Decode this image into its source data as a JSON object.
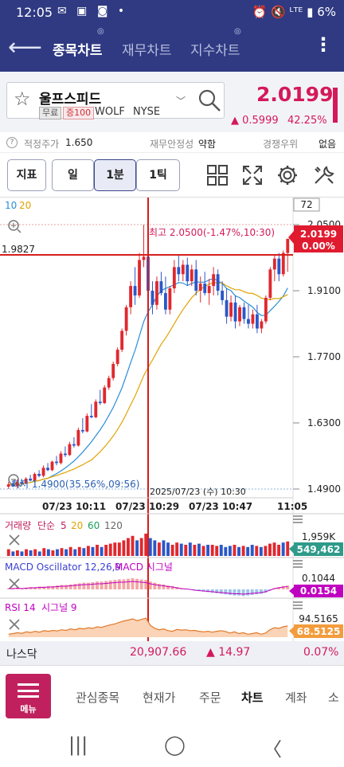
{
  "status_bar": {
    "time": "12:05",
    "left_icons": "✉ ▣ ◙ •",
    "right": "⏰ 🔇 ᴸᵀᴱ ▮ 6%"
  },
  "app_bar": {
    "tabs": [
      {
        "label": "종목차트",
        "badge": "◎",
        "active": true
      },
      {
        "label": "재무차트",
        "badge": "",
        "active": false
      },
      {
        "label": "지수차트",
        "badge": "◎",
        "active": false
      }
    ],
    "back_icon": "arrow-left-icon",
    "more_icon": "kebab-menu-icon"
  },
  "stock": {
    "name": "울프스피드",
    "tag_free": "무료",
    "tag_margin": "증100",
    "ticker": "WOLF",
    "exchange": "NYSE",
    "price": "2.0199",
    "change": "▲ 0.5999",
    "change_pct": "42.25%",
    "up_color": "#d4195a"
  },
  "info": {
    "fair_label": "적정주가",
    "fair_value": "1.650",
    "stability_label": "재무안정성",
    "stability_value": "약함",
    "competition_label": "경쟁우위",
    "competition_value": "없음",
    "help_icon": "?"
  },
  "toolbar": {
    "indicator_label": "지표",
    "period_day": "일",
    "period_min": "1분",
    "period_tick": "1틱"
  },
  "chart_data": {
    "type": "candlestick",
    "count_box": "72",
    "ma_legend": [
      "10",
      "20"
    ],
    "ma_colors": [
      "#2b8fd8",
      "#e0a300"
    ],
    "price_axis": [
      "2.0500",
      "1.9100",
      "1.7700",
      "1.6300",
      "1.4900"
    ],
    "ylim": [
      1.49,
      2.05
    ],
    "crosshair_value": "1.9827",
    "crosshair_time": "2025/07/23 (수) 10:30",
    "high_annotation": "최고 2.0500(-1.47%,10:30)",
    "low_annotation": "최저 1.4900(35.56%,09:56)",
    "current_price_label": "2.0199",
    "current_change_label": "0.00%",
    "time_axis": [
      "07/23 10:11",
      "07/23 10:29",
      "07/23 10:47",
      "11:05"
    ],
    "candles": [
      {
        "o": 1.495,
        "h": 1.505,
        "l": 1.49,
        "c": 1.5
      },
      {
        "o": 1.5,
        "h": 1.508,
        "l": 1.494,
        "c": 1.496
      },
      {
        "o": 1.496,
        "h": 1.51,
        "l": 1.492,
        "c": 1.505
      },
      {
        "o": 1.505,
        "h": 1.512,
        "l": 1.498,
        "c": 1.502
      },
      {
        "o": 1.502,
        "h": 1.515,
        "l": 1.5,
        "c": 1.512
      },
      {
        "o": 1.512,
        "h": 1.52,
        "l": 1.506,
        "c": 1.508
      },
      {
        "o": 1.508,
        "h": 1.525,
        "l": 1.505,
        "c": 1.522
      },
      {
        "o": 1.522,
        "h": 1.53,
        "l": 1.515,
        "c": 1.518
      },
      {
        "o": 1.518,
        "h": 1.54,
        "l": 1.515,
        "c": 1.535
      },
      {
        "o": 1.535,
        "h": 1.545,
        "l": 1.528,
        "c": 1.53
      },
      {
        "o": 1.53,
        "h": 1.55,
        "l": 1.528,
        "c": 1.548
      },
      {
        "o": 1.548,
        "h": 1.56,
        "l": 1.54,
        "c": 1.545
      },
      {
        "o": 1.545,
        "h": 1.57,
        "l": 1.542,
        "c": 1.565
      },
      {
        "o": 1.565,
        "h": 1.58,
        "l": 1.558,
        "c": 1.562
      },
      {
        "o": 1.562,
        "h": 1.59,
        "l": 1.56,
        "c": 1.585
      },
      {
        "o": 1.585,
        "h": 1.6,
        "l": 1.578,
        "c": 1.582
      },
      {
        "o": 1.582,
        "h": 1.62,
        "l": 1.58,
        "c": 1.615
      },
      {
        "o": 1.615,
        "h": 1.64,
        "l": 1.608,
        "c": 1.612
      },
      {
        "o": 1.612,
        "h": 1.65,
        "l": 1.61,
        "c": 1.645
      },
      {
        "o": 1.645,
        "h": 1.67,
        "l": 1.64,
        "c": 1.642
      },
      {
        "o": 1.642,
        "h": 1.68,
        "l": 1.64,
        "c": 1.675
      },
      {
        "o": 1.675,
        "h": 1.7,
        "l": 1.668,
        "c": 1.672
      },
      {
        "o": 1.672,
        "h": 1.71,
        "l": 1.67,
        "c": 1.705
      },
      {
        "o": 1.705,
        "h": 1.73,
        "l": 1.7,
        "c": 1.725
      },
      {
        "o": 1.725,
        "h": 1.76,
        "l": 1.72,
        "c": 1.755
      },
      {
        "o": 1.755,
        "h": 1.79,
        "l": 1.75,
        "c": 1.785
      },
      {
        "o": 1.785,
        "h": 1.83,
        "l": 1.78,
        "c": 1.825
      },
      {
        "o": 1.825,
        "h": 1.88,
        "l": 1.815,
        "c": 1.875
      },
      {
        "o": 1.875,
        "h": 1.93,
        "l": 1.86,
        "c": 1.92
      },
      {
        "o": 1.92,
        "h": 1.96,
        "l": 1.88,
        "c": 1.9
      },
      {
        "o": 1.9,
        "h": 1.99,
        "l": 1.895,
        "c": 1.975
      },
      {
        "o": 1.975,
        "h": 2.05,
        "l": 1.96,
        "c": 1.982
      },
      {
        "o": 1.982,
        "h": 1.985,
        "l": 1.9,
        "c": 1.91
      },
      {
        "o": 1.91,
        "h": 1.93,
        "l": 1.86,
        "c": 1.88
      },
      {
        "o": 1.88,
        "h": 1.94,
        "l": 1.87,
        "c": 1.93
      },
      {
        "o": 1.93,
        "h": 1.95,
        "l": 1.9,
        "c": 1.905
      },
      {
        "o": 1.905,
        "h": 1.94,
        "l": 1.86,
        "c": 1.87
      },
      {
        "o": 1.87,
        "h": 1.92,
        "l": 1.86,
        "c": 1.915
      },
      {
        "o": 1.915,
        "h": 1.975,
        "l": 1.905,
        "c": 1.96
      },
      {
        "o": 1.96,
        "h": 1.985,
        "l": 1.93,
        "c": 1.945
      },
      {
        "o": 1.945,
        "h": 1.975,
        "l": 1.93,
        "c": 1.965
      },
      {
        "o": 1.965,
        "h": 1.98,
        "l": 1.92,
        "c": 1.93
      },
      {
        "o": 1.93,
        "h": 1.965,
        "l": 1.92,
        "c": 1.955
      },
      {
        "o": 1.955,
        "h": 1.975,
        "l": 1.9,
        "c": 1.91
      },
      {
        "o": 1.91,
        "h": 1.94,
        "l": 1.885,
        "c": 1.925
      },
      {
        "o": 1.925,
        "h": 1.95,
        "l": 1.9,
        "c": 1.905
      },
      {
        "o": 1.905,
        "h": 1.935,
        "l": 1.88,
        "c": 1.92
      },
      {
        "o": 1.92,
        "h": 1.96,
        "l": 1.9,
        "c": 1.945
      },
      {
        "o": 1.945,
        "h": 1.955,
        "l": 1.9,
        "c": 1.91
      },
      {
        "o": 1.91,
        "h": 1.93,
        "l": 1.88,
        "c": 1.89
      },
      {
        "o": 1.89,
        "h": 1.915,
        "l": 1.84,
        "c": 1.855
      },
      {
        "o": 1.855,
        "h": 1.9,
        "l": 1.845,
        "c": 1.885
      },
      {
        "o": 1.885,
        "h": 1.9,
        "l": 1.83,
        "c": 1.845
      },
      {
        "o": 1.845,
        "h": 1.88,
        "l": 1.835,
        "c": 1.875
      },
      {
        "o": 1.875,
        "h": 1.885,
        "l": 1.84,
        "c": 1.85
      },
      {
        "o": 1.85,
        "h": 1.88,
        "l": 1.83,
        "c": 1.84
      },
      {
        "o": 1.84,
        "h": 1.87,
        "l": 1.83,
        "c": 1.86
      },
      {
        "o": 1.86,
        "h": 1.88,
        "l": 1.82,
        "c": 1.83
      },
      {
        "o": 1.83,
        "h": 1.85,
        "l": 1.82,
        "c": 1.845
      },
      {
        "o": 1.845,
        "h": 1.9,
        "l": 1.84,
        "c": 1.895
      },
      {
        "o": 1.895,
        "h": 1.96,
        "l": 1.89,
        "c": 1.955
      },
      {
        "o": 1.955,
        "h": 1.985,
        "l": 1.93,
        "c": 1.978
      },
      {
        "o": 1.978,
        "h": 1.99,
        "l": 1.93,
        "c": 1.945
      },
      {
        "o": 1.945,
        "h": 1.995,
        "l": 1.94,
        "c": 1.99
      },
      {
        "o": 1.99,
        "h": 2.02,
        "l": 1.95,
        "c": 2.0199
      }
    ]
  },
  "volume": {
    "legend": [
      "거래량",
      "단순",
      "5",
      "20",
      "60",
      "120"
    ],
    "legend_colors": [
      "#c0215e",
      "#c0215e",
      "#c0215e",
      "#e0a300",
      "#1aa05a",
      "#666666"
    ],
    "max_label": "1,959K",
    "current_label": "549,462",
    "values": [
      0.3,
      0.2,
      0.25,
      0.2,
      0.3,
      0.25,
      0.3,
      0.2,
      0.35,
      0.3,
      0.25,
      0.3,
      0.35,
      0.3,
      0.4,
      0.3,
      0.4,
      0.35,
      0.45,
      0.4,
      0.5,
      0.4,
      0.5,
      0.55,
      0.6,
      0.6,
      0.7,
      0.8,
      0.9,
      0.7,
      0.8,
      1.0,
      0.8,
      0.7,
      0.6,
      0.7,
      0.6,
      0.5,
      0.6,
      0.55,
      0.5,
      0.6,
      0.5,
      0.55,
      0.45,
      0.5,
      0.5,
      0.45,
      0.5,
      0.4,
      0.45,
      0.5,
      0.4,
      0.45,
      0.4,
      0.5,
      0.45,
      0.4,
      0.45,
      0.55,
      0.6,
      0.5,
      0.6,
      0.65
    ]
  },
  "macd": {
    "label": "MACD Oscillator 12,26,9",
    "signal_label": "MACD 시그널",
    "label_color": "#3a3fd0",
    "signal_color": "#c000c0",
    "top_label": "0.1044",
    "current_label": "0.0154",
    "osc": [
      0.1,
      0.1,
      0.15,
      0.1,
      0.15,
      0.2,
      0.2,
      0.25,
      0.25,
      0.3,
      0.3,
      0.35,
      0.4,
      0.4,
      0.45,
      0.5,
      0.55,
      0.6,
      0.6,
      0.65,
      0.7,
      0.7,
      0.75,
      0.8,
      0.85,
      0.9,
      0.9,
      0.95,
      1.0,
      0.95,
      0.9,
      0.85,
      0.7,
      0.6,
      0.5,
      0.45,
      0.35,
      0.3,
      0.2,
      0.1,
      0.05,
      0.0,
      -0.1,
      -0.15,
      -0.2,
      -0.25,
      -0.3,
      -0.35,
      -0.4,
      -0.45,
      -0.5,
      -0.55,
      -0.55,
      -0.6,
      -0.55,
      -0.5,
      -0.45,
      -0.4,
      -0.3,
      -0.1,
      0.1,
      0.2,
      0.3,
      0.35
    ]
  },
  "rsi": {
    "label": "RSI 14",
    "signal_label": "시그널 9",
    "label_color": "#c000c0",
    "signal_color": "#c000c0",
    "top_label": "94.5165",
    "current_label": "68.5125",
    "values": [
      40,
      42,
      45,
      43,
      48,
      46,
      50,
      47,
      52,
      50,
      53,
      51,
      55,
      53,
      58,
      55,
      60,
      58,
      62,
      60,
      65,
      63,
      68,
      72,
      75,
      80,
      85,
      88,
      92,
      86,
      90,
      94,
      70,
      60,
      55,
      58,
      52,
      50,
      56,
      54,
      55,
      52,
      53,
      50,
      48,
      50,
      47,
      50,
      52,
      49,
      44,
      48,
      42,
      45,
      40,
      42,
      45,
      40,
      44,
      55,
      62,
      60,
      65,
      68
    ]
  },
  "index_bar": {
    "name": "나스닥",
    "value": "20,907.66",
    "change": "▲ 14.97",
    "pct": "0.07%"
  },
  "bottom_nav": {
    "menu_label": "메뉴",
    "items": [
      "관심종목",
      "현재가",
      "주문",
      "차트",
      "계좌",
      "소"
    ],
    "active_index": 3
  },
  "system_nav": {
    "recents": "|||",
    "home": "◯",
    "back": "〈"
  }
}
